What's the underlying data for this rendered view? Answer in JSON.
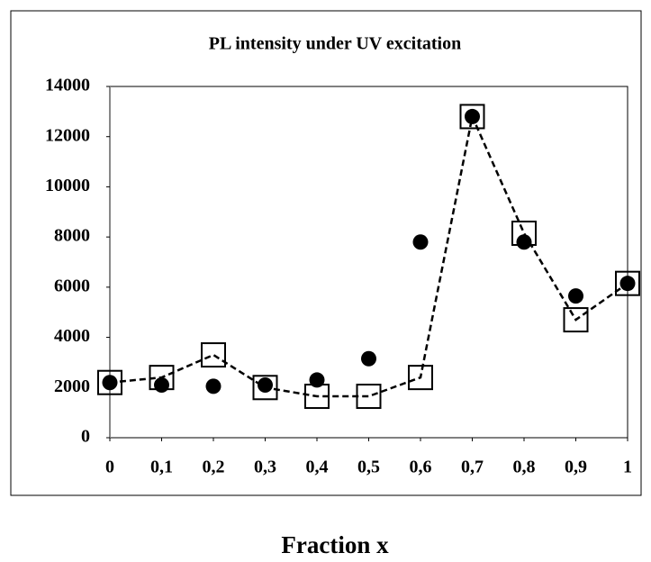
{
  "chart_data": {
    "type": "scatter",
    "title": "PL intensity under UV excitation",
    "xlabel": "Fraction x",
    "x": [
      0,
      0.1,
      0.2,
      0.3,
      0.4,
      0.5,
      0.6,
      0.7,
      0.8,
      0.9,
      1
    ],
    "series": [
      {
        "color": "#000000",
        "marker": "circle",
        "line": "none",
        "values": [
          2200,
          2100,
          2050,
          2100,
          2300,
          3150,
          7800,
          12800,
          7800,
          5650,
          6150
        ]
      },
      {
        "color": "#000000",
        "marker": "square",
        "line": "dashed",
        "values": [
          2200,
          2400,
          3300,
          2000,
          1650,
          1650,
          2400,
          12800,
          8150,
          4700,
          6150
        ]
      }
    ],
    "xlim": [
      0,
      1
    ],
    "xticks": [
      0,
      {
        "value": 0.1,
        "label": "0,1"
      },
      {
        "value": 0.2,
        "label": "0,2"
      },
      {
        "value": 0.3,
        "label": "0,3"
      },
      {
        "value": 0.4,
        "label": "0,4"
      },
      {
        "value": 0.5,
        "label": "0,5"
      },
      {
        "value": 0.6,
        "label": "0,6"
      },
      {
        "value": 0.7,
        "label": "0,7"
      },
      {
        "value": 0.8,
        "label": "0,8"
      },
      {
        "value": 0.9,
        "label": "0,9"
      },
      1
    ],
    "ylim": [
      0,
      14000
    ],
    "yticks": [
      0,
      2000,
      4000,
      6000,
      8000,
      10000,
      12000,
      14000
    ],
    "grid": false
  }
}
